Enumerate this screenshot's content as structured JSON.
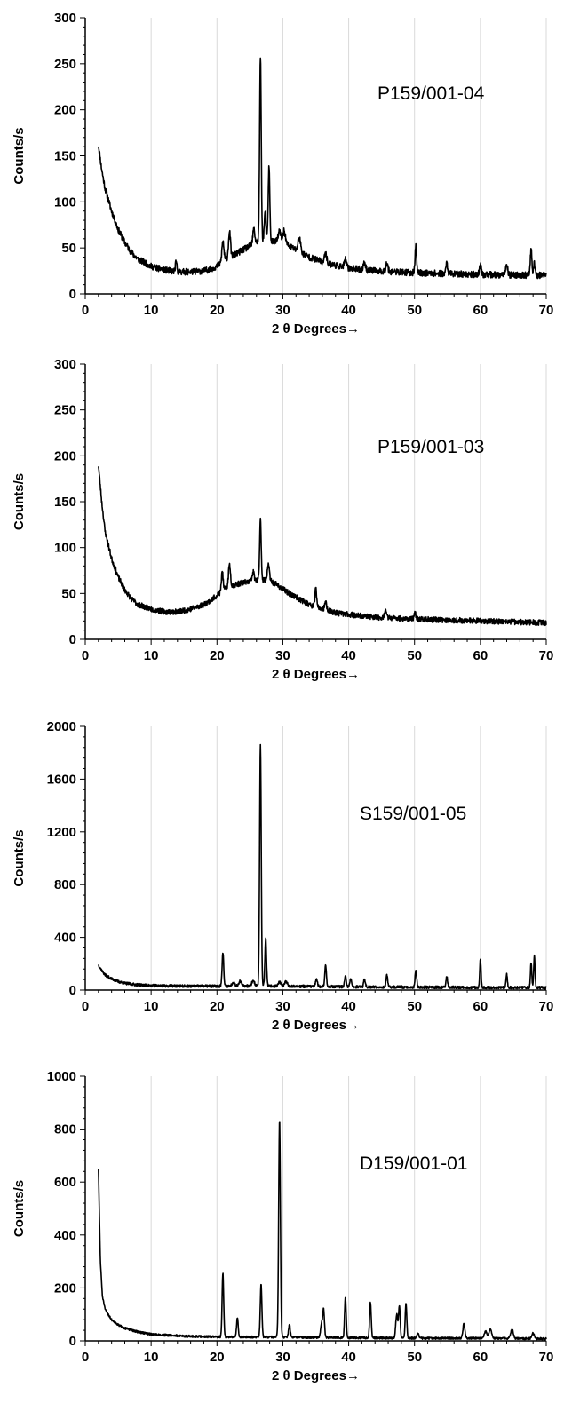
{
  "chart_data": [
    {
      "type": "line",
      "sample_label": "P159/001-04",
      "xlabel": "2 θ Degrees→",
      "ylabel": "Counts/s",
      "xlim": [
        0,
        70
      ],
      "ylim": [
        0,
        300
      ],
      "x_ticks": [
        "0",
        "10",
        "20",
        "30",
        "40",
        "50",
        "60",
        "70"
      ],
      "y_ticks": [
        "0",
        "50",
        "100",
        "150",
        "200",
        "250",
        "300"
      ],
      "grid": "vertical",
      "background_points": [
        [
          2,
          162
        ],
        [
          2.5,
          135
        ],
        [
          3,
          115
        ],
        [
          4,
          90
        ],
        [
          5,
          70
        ],
        [
          6,
          56
        ],
        [
          7,
          45
        ],
        [
          8,
          38
        ],
        [
          10,
          30
        ],
        [
          12,
          26
        ],
        [
          14,
          24
        ],
        [
          16,
          24
        ],
        [
          18,
          25
        ],
        [
          19,
          27
        ],
        [
          20,
          30
        ],
        [
          21,
          36
        ],
        [
          22,
          40
        ],
        [
          23,
          44
        ],
        [
          24,
          48
        ],
        [
          25,
          52
        ],
        [
          26,
          56
        ],
        [
          27,
          58
        ],
        [
          28,
          58
        ],
        [
          29,
          57
        ],
        [
          30,
          55
        ],
        [
          31,
          52
        ],
        [
          32,
          48
        ],
        [
          33,
          44
        ],
        [
          34,
          40
        ],
        [
          36,
          35
        ],
        [
          38,
          31
        ],
        [
          40,
          28
        ],
        [
          44,
          25
        ],
        [
          50,
          23
        ],
        [
          60,
          21
        ],
        [
          70,
          20
        ]
      ],
      "peaks": [
        [
          13.8,
          10,
          0.12
        ],
        [
          20.9,
          22,
          0.15
        ],
        [
          21.9,
          28,
          0.15
        ],
        [
          25.6,
          16,
          0.15
        ],
        [
          26.6,
          200,
          0.12
        ],
        [
          27.3,
          30,
          0.12
        ],
        [
          27.9,
          80,
          0.12
        ],
        [
          29.5,
          12,
          0.2
        ],
        [
          30.2,
          14,
          0.2
        ],
        [
          32.5,
          15,
          0.2
        ],
        [
          36.5,
          12,
          0.15
        ],
        [
          39.5,
          9,
          0.15
        ],
        [
          42.4,
          8,
          0.15
        ],
        [
          45.8,
          10,
          0.15
        ],
        [
          50.2,
          28,
          0.12
        ],
        [
          54.9,
          12,
          0.12
        ],
        [
          60,
          10,
          0.15
        ],
        [
          64,
          10,
          0.15
        ],
        [
          67.7,
          28,
          0.12
        ],
        [
          68.2,
          14,
          0.12
        ]
      ],
      "noise": 3.5,
      "seed": 11
    },
    {
      "type": "line",
      "sample_label": "P159/001-03",
      "xlabel": "2 θ Degrees→",
      "ylabel": "Counts/s",
      "xlim": [
        0,
        70
      ],
      "ylim": [
        0,
        300
      ],
      "x_ticks": [
        "0",
        "10",
        "20",
        "30",
        "40",
        "50",
        "60",
        "70"
      ],
      "y_ticks": [
        "0",
        "50",
        "100",
        "150",
        "200",
        "250",
        "300"
      ],
      "grid": "vertical",
      "background_points": [
        [
          2,
          190
        ],
        [
          2.5,
          150
        ],
        [
          3,
          118
        ],
        [
          4,
          88
        ],
        [
          5,
          68
        ],
        [
          6,
          54
        ],
        [
          7,
          44
        ],
        [
          8,
          38
        ],
        [
          10,
          33
        ],
        [
          12,
          30
        ],
        [
          14,
          30
        ],
        [
          16,
          33
        ],
        [
          18,
          38
        ],
        [
          19,
          42
        ],
        [
          20,
          48
        ],
        [
          21,
          54
        ],
        [
          22,
          58
        ],
        [
          23,
          60
        ],
        [
          24,
          62
        ],
        [
          25,
          63
        ],
        [
          26,
          64
        ],
        [
          27,
          65
        ],
        [
          28,
          64
        ],
        [
          29,
          60
        ],
        [
          30,
          55
        ],
        [
          31,
          50
        ],
        [
          32,
          46
        ],
        [
          33,
          42
        ],
        [
          34,
          38
        ],
        [
          36,
          33
        ],
        [
          38,
          29
        ],
        [
          40,
          27
        ],
        [
          44,
          24
        ],
        [
          50,
          22
        ],
        [
          60,
          20
        ],
        [
          70,
          18
        ]
      ],
      "peaks": [
        [
          20.8,
          22,
          0.12
        ],
        [
          21.9,
          24,
          0.15
        ],
        [
          25.5,
          10,
          0.15
        ],
        [
          26.6,
          65,
          0.12
        ],
        [
          27.8,
          18,
          0.15
        ],
        [
          35,
          20,
          0.12
        ],
        [
          36.5,
          8,
          0.15
        ],
        [
          45.6,
          8,
          0.15
        ],
        [
          50.1,
          6,
          0.15
        ]
      ],
      "noise": 3,
      "seed": 23
    },
    {
      "type": "line",
      "sample_label": "S159/001-05",
      "xlabel": "2 θ Degrees→",
      "ylabel": "Counts/s",
      "xlim": [
        0,
        70
      ],
      "ylim": [
        0,
        2000
      ],
      "x_ticks": [
        "0",
        "10",
        "20",
        "30",
        "40",
        "50",
        "60",
        "70"
      ],
      "y_ticks": [
        "0",
        "400",
        "800",
        "1200",
        "1600",
        "2000"
      ],
      "grid": "vertical",
      "background_points": [
        [
          2,
          190
        ],
        [
          2.5,
          150
        ],
        [
          3,
          115
        ],
        [
          4,
          85
        ],
        [
          5,
          65
        ],
        [
          6,
          52
        ],
        [
          8,
          40
        ],
        [
          10,
          34
        ],
        [
          15,
          30
        ],
        [
          20,
          30
        ],
        [
          25,
          32
        ],
        [
          30,
          30
        ],
        [
          40,
          25
        ],
        [
          50,
          22
        ],
        [
          60,
          20
        ],
        [
          70,
          18
        ]
      ],
      "peaks": [
        [
          20.9,
          260,
          0.12
        ],
        [
          22.5,
          30,
          0.2
        ],
        [
          23.5,
          35,
          0.2
        ],
        [
          25.5,
          40,
          0.2
        ],
        [
          26.6,
          1830,
          0.12
        ],
        [
          27.4,
          360,
          0.12
        ],
        [
          29.5,
          30,
          0.2
        ],
        [
          30.5,
          35,
          0.2
        ],
        [
          35.1,
          50,
          0.15
        ],
        [
          36.5,
          160,
          0.12
        ],
        [
          39.5,
          80,
          0.12
        ],
        [
          40.3,
          60,
          0.12
        ],
        [
          42.4,
          60,
          0.12
        ],
        [
          45.8,
          90,
          0.12
        ],
        [
          50.2,
          130,
          0.12
        ],
        [
          54.9,
          80,
          0.12
        ],
        [
          60,
          215,
          0.1
        ],
        [
          64,
          100,
          0.1
        ],
        [
          67.7,
          190,
          0.1
        ],
        [
          68.2,
          240,
          0.1
        ]
      ],
      "noise": 10,
      "seed": 37
    },
    {
      "type": "line",
      "sample_label": "D159/001-01",
      "xlabel": "2 θ Degrees→",
      "ylabel": "Counts/s",
      "xlim": [
        0,
        70
      ],
      "ylim": [
        0,
        1000
      ],
      "x_ticks": [
        "0",
        "10",
        "20",
        "30",
        "40",
        "50",
        "60",
        "70"
      ],
      "y_ticks": [
        "0",
        "200",
        "400",
        "600",
        "800",
        "1000"
      ],
      "grid": "vertical",
      "background_points": [
        [
          2,
          650
        ],
        [
          2.3,
          300
        ],
        [
          2.6,
          170
        ],
        [
          3,
          120
        ],
        [
          4,
          80
        ],
        [
          5,
          60
        ],
        [
          6,
          48
        ],
        [
          8,
          34
        ],
        [
          10,
          25
        ],
        [
          15,
          18
        ],
        [
          20,
          15
        ],
        [
          30,
          14
        ],
        [
          40,
          12
        ],
        [
          50,
          10
        ],
        [
          60,
          10
        ],
        [
          70,
          8
        ]
      ],
      "peaks": [
        [
          20.9,
          240,
          0.12
        ],
        [
          23.1,
          75,
          0.12
        ],
        [
          26.7,
          200,
          0.12
        ],
        [
          29.5,
          820,
          0.13
        ],
        [
          31,
          50,
          0.12
        ],
        [
          35.9,
          55,
          0.15
        ],
        [
          36.2,
          100,
          0.12
        ],
        [
          39.5,
          155,
          0.12
        ],
        [
          43.3,
          135,
          0.12
        ],
        [
          47.3,
          90,
          0.15
        ],
        [
          47.7,
          120,
          0.12
        ],
        [
          48.7,
          130,
          0.12
        ],
        [
          50.5,
          20,
          0.15
        ],
        [
          57.5,
          55,
          0.15
        ],
        [
          60.8,
          25,
          0.2
        ],
        [
          61.5,
          35,
          0.2
        ],
        [
          64.8,
          35,
          0.2
        ],
        [
          68,
          20,
          0.2
        ]
      ],
      "noise": 4,
      "seed": 51
    }
  ]
}
